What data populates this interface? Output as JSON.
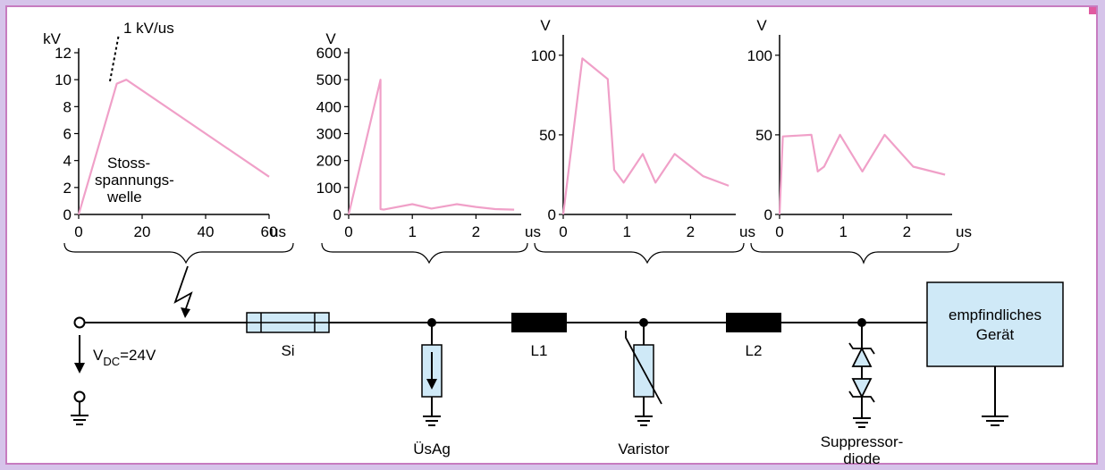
{
  "charts": [
    {
      "unit": "kV",
      "xunit": "us",
      "annotation": "1 kV/us",
      "caption": [
        "Stoss-",
        "spannungs-",
        "welle"
      ],
      "yticks": [
        "0",
        "2",
        "4",
        "6",
        "8",
        "10",
        "12"
      ],
      "xticks": [
        "0",
        "20",
        "40",
        "60"
      ]
    },
    {
      "unit": "V",
      "xunit": "us",
      "yticks": [
        "0",
        "100",
        "200",
        "300",
        "400",
        "500",
        "600"
      ],
      "xticks": [
        "0",
        "1",
        "2"
      ]
    },
    {
      "unit": "V",
      "xunit": "us",
      "yticks": [
        "0",
        "50",
        "100"
      ],
      "xticks": [
        "0",
        "1",
        "2"
      ]
    },
    {
      "unit": "V",
      "xunit": "us",
      "yticks": [
        "0",
        "50",
        "100"
      ],
      "xticks": [
        "0",
        "1",
        "2"
      ]
    }
  ],
  "chart_data": [
    {
      "type": "line",
      "ylabel": "kV",
      "xlabel": "us",
      "xlim": [
        0,
        60
      ],
      "ylim": [
        0,
        12
      ],
      "x": [
        0,
        12,
        15,
        60
      ],
      "y": [
        0,
        9.7,
        10,
        2.8
      ]
    },
    {
      "type": "line",
      "ylabel": "V",
      "xlabel": "us",
      "xlim": [
        0,
        2.5
      ],
      "ylim": [
        0,
        600
      ],
      "x": [
        0,
        0.5,
        0.5,
        0.55,
        1.0,
        1.3,
        1.7,
        2.0,
        2.3,
        2.6
      ],
      "y": [
        0,
        500,
        20,
        18,
        38,
        22,
        38,
        28,
        20,
        18
      ]
    },
    {
      "type": "line",
      "ylabel": "V",
      "xlabel": "us",
      "xlim": [
        0,
        2.5
      ],
      "ylim": [
        0,
        110
      ],
      "x": [
        0,
        0.3,
        0.7,
        0.8,
        0.95,
        1.25,
        1.45,
        1.75,
        2.2,
        2.6
      ],
      "y": [
        0,
        98,
        85,
        28,
        20,
        38,
        20,
        38,
        24,
        18
      ]
    },
    {
      "type": "line",
      "ylabel": "V",
      "xlabel": "us",
      "xlim": [
        0,
        2.5
      ],
      "ylim": [
        0,
        110
      ],
      "x": [
        0,
        0.05,
        0.5,
        0.6,
        0.7,
        0.95,
        1.3,
        1.65,
        2.1,
        2.6
      ],
      "y": [
        0,
        49,
        50,
        27,
        30,
        50,
        27,
        50,
        30,
        25
      ]
    }
  ],
  "circuit": {
    "source_label": "V",
    "source_sub": "DC",
    "source_value": "=24V",
    "fuse": "Si",
    "l1": "L1",
    "l2": "L2",
    "usag": "ÜsAg",
    "varistor": "Varistor",
    "suppressor": [
      "Suppressor-",
      "diode"
    ],
    "device": [
      "empfindliches",
      "Gerät"
    ]
  },
  "colors": {
    "curve": "#f0a0c8",
    "component_fill": "#cfe9f7",
    "background": "#d6c4ea",
    "frame": "#c77cc0"
  }
}
